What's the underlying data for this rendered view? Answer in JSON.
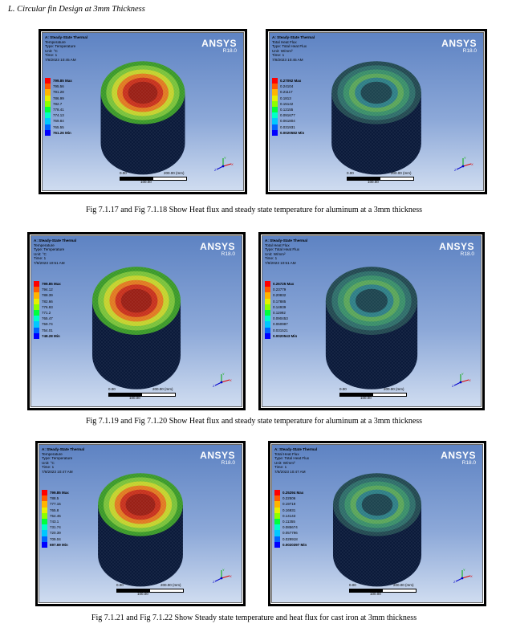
{
  "section_title": "L.   Circular fin Design at 3mm Thickness",
  "ansys": {
    "name": "ANSYS",
    "version": "R18.0"
  },
  "scale": {
    "zero": "0.00",
    "end": "200.00 (mm)",
    "mid": "100.00"
  },
  "panels": [
    {
      "id": "fig-7-1-17",
      "title": "A: Steady-State Thermal",
      "type_name": "Temperature",
      "type_line": "Type: Temperature",
      "unit": "Unit: °C",
      "time": "Time: 1",
      "date": "7/8/2023 10:45 AM",
      "legend": [
        "799.85 Max",
        "795.56",
        "791.28",
        "786.99",
        "782.7",
        "778.41",
        "774.13",
        "769.84",
        "765.55",
        "761.26 Min"
      ],
      "kind": "temperature"
    },
    {
      "id": "fig-7-1-18",
      "title": "A: Steady-State Thermal",
      "type_name": "Total Heat Flux",
      "type_line": "Type: Total Heat Flux",
      "unit": "Unit: W/mm²",
      "time": "Time: 1",
      "date": "7/8/2023 10:45 AM",
      "legend": [
        "0.27092 Max",
        "0.24104",
        "0.21117",
        "0.1813",
        "0.15142",
        "0.12155",
        "0.091677",
        "0.061804",
        "0.031931",
        "0.0020582 Min"
      ],
      "kind": "flux"
    },
    {
      "id": "fig-7-1-19",
      "title": "A: Steady-State Thermal",
      "type_name": "Temperature",
      "type_line": "Type: Temperature",
      "unit": "Unit: °C",
      "time": "Time: 1",
      "date": "7/8/2023 10:51 AM",
      "legend": [
        "799.85 Max",
        "794.12",
        "788.39",
        "782.66",
        "776.93",
        "771.2",
        "765.47",
        "759.74",
        "754.01",
        "748.28 Min"
      ],
      "kind": "temperature"
    },
    {
      "id": "fig-7-1-20",
      "title": "A: Steady-State Thermal",
      "type_name": "Total Heat Flux",
      "type_line": "Type: Total Heat Flux",
      "unit": "Unit: W/mm²",
      "time": "Time: 1",
      "date": "7/8/2023 10:51 AM",
      "legend": [
        "0.26725 Max",
        "0.23779",
        "0.20832",
        "0.17885",
        "0.14939",
        "0.11992",
        "0.090453",
        "0.060987",
        "0.031521",
        "0.0020543 Min"
      ],
      "kind": "flux"
    },
    {
      "id": "fig-7-1-21",
      "title": "A: Steady-State Thermal",
      "type_name": "Temperature",
      "type_line": "Type: Temperature",
      "unit": "Unit: °C",
      "time": "Time: 1",
      "date": "7/8/2023 10:47 AM",
      "legend": [
        "799.85 Max",
        "788.5",
        "777.15",
        "765.8",
        "754.45",
        "743.1",
        "731.74",
        "720.39",
        "709.04",
        "697.69 Min"
      ],
      "kind": "temperature"
    },
    {
      "id": "fig-7-1-22",
      "title": "A: Steady-State Thermal",
      "type_name": "Total Heat Flux",
      "type_line": "Type: Total Heat Flux",
      "unit": "Unit: W/mm²",
      "time": "Time: 1",
      "date": "7/8/2023 10:47 AM",
      "legend": [
        "0.25294 Max",
        "0.22506",
        "0.19719",
        "0.16931",
        "0.14143",
        "0.11355",
        "0.085674",
        "0.057796",
        "0.029918",
        "0.0020397 Min"
      ],
      "kind": "flux"
    }
  ],
  "legend_colors": [
    "#ff0000",
    "#ff5a00",
    "#ffb400",
    "#e6f000",
    "#8cff00",
    "#00ff3c",
    "#00ffc8",
    "#00c8ff",
    "#0064ff",
    "#0000ff"
  ],
  "captions": [
    "Fig 7.1.17 and Fig 7.1.18 Show Heat flux and steady state temperature for aluminum at a 3mm thickness",
    "Fig 7.1.19 and Fig 7.1.20 Show Heat flux and steady state temperature for aluminum at a 3mm thickness",
    "Fig 7.1.21 and Fig 7.1.22 Show Steady state temperature and heat flux for cast iron at 3mm thickness"
  ]
}
